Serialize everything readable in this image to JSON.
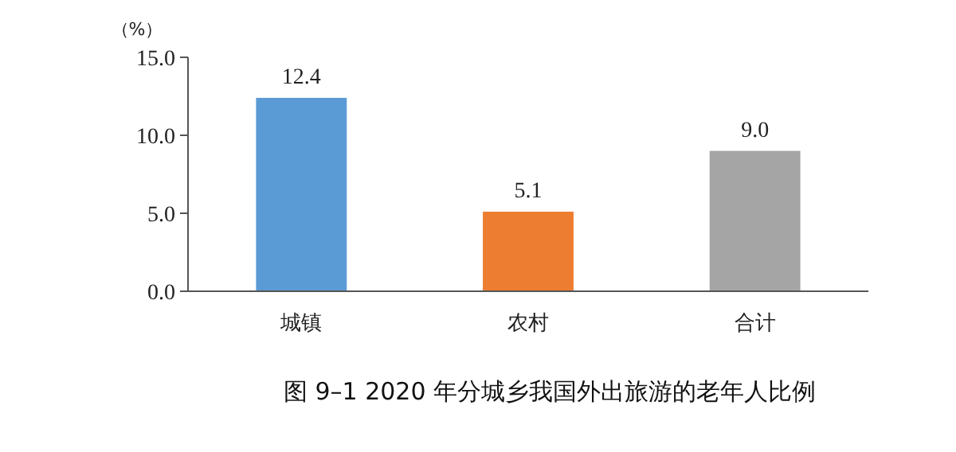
{
  "chart_data": {
    "type": "bar",
    "title": "图 9–1 2020 年分城乡我国外出旅游的老年人比例",
    "ylabel": "（%）",
    "categories": [
      "城镇",
      "农村",
      "合计"
    ],
    "values": [
      12.4,
      5.1,
      9.0
    ],
    "colors": [
      "#5b9bd5",
      "#ed7d31",
      "#a5a5a5"
    ],
    "value_labels": [
      "12.4",
      "5.1",
      "9.0"
    ],
    "ylim": [
      0,
      15
    ],
    "yticks": [
      {
        "value": 0,
        "label": "0.0"
      },
      {
        "value": 5,
        "label": "5.0"
      },
      {
        "value": 10,
        "label": "10.0"
      },
      {
        "value": 15,
        "label": "15.0"
      }
    ],
    "grid": false
  }
}
